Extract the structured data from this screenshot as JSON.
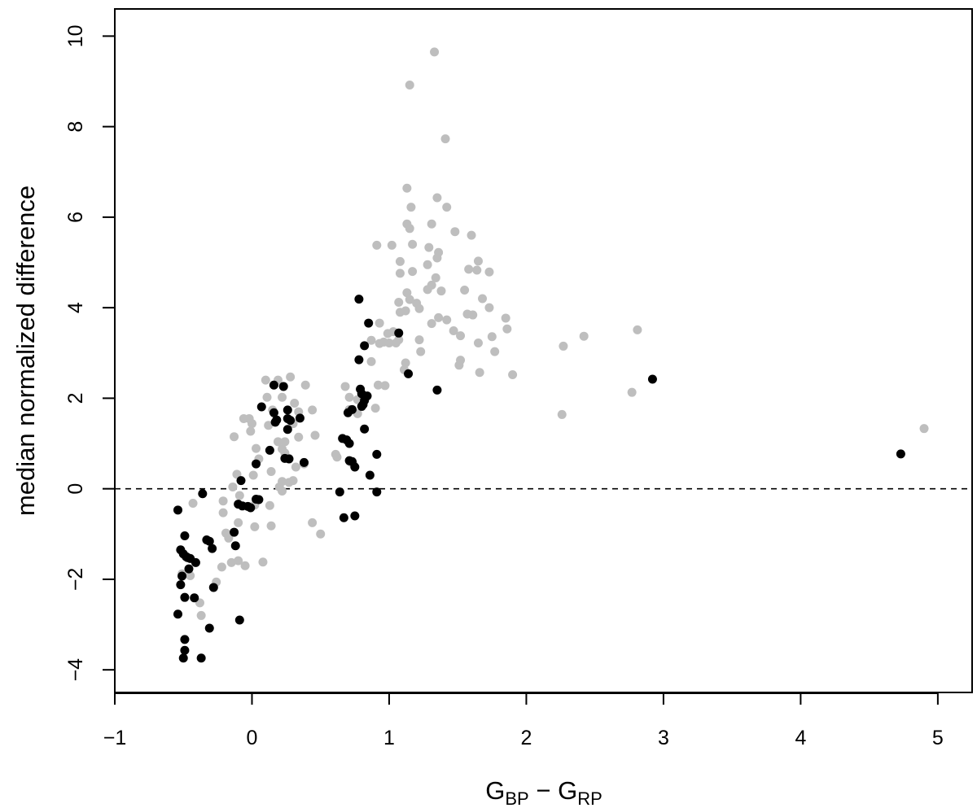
{
  "chart_data": {
    "type": "scatter",
    "title": "",
    "xlabel": {
      "main1": "G",
      "sub1": "BP",
      "mid": " − G",
      "sub2": "RP"
    },
    "ylabel": "median normalized difference",
    "xlim": [
      -1.0,
      5.25
    ],
    "ylim": [
      -4.5,
      10.6
    ],
    "x_ticks": [
      -1,
      0,
      1,
      2,
      3,
      4,
      5
    ],
    "x_tick_labels": [
      "−1",
      "0",
      "1",
      "2",
      "3",
      "4",
      "5"
    ],
    "y_ticks": [
      -4,
      -2,
      0,
      2,
      4,
      6,
      8,
      10
    ],
    "y_tick_labels": [
      "−4",
      "−2",
      "0",
      "2",
      "4",
      "6",
      "8",
      "10"
    ],
    "grid": false,
    "reference_line": {
      "y": 0,
      "style": "dashed"
    },
    "series": [
      {
        "color": "#bebebe",
        "points": [
          [
            1.33,
            9.65
          ],
          [
            1.15,
            8.92
          ],
          [
            1.41,
            7.73
          ],
          [
            1.13,
            6.64
          ],
          [
            1.35,
            6.43
          ],
          [
            1.16,
            6.22
          ],
          [
            1.42,
            6.22
          ],
          [
            1.13,
            5.85
          ],
          [
            1.31,
            5.85
          ],
          [
            1.15,
            5.75
          ],
          [
            1.48,
            5.68
          ],
          [
            1.6,
            5.6
          ],
          [
            1.17,
            5.4
          ],
          [
            1.36,
            5.22
          ],
          [
            0.91,
            5.38
          ],
          [
            1.02,
            5.38
          ],
          [
            1.29,
            5.33
          ],
          [
            1.35,
            5.1
          ],
          [
            1.08,
            5.02
          ],
          [
            1.28,
            4.95
          ],
          [
            1.65,
            5.03
          ],
          [
            1.58,
            4.85
          ],
          [
            1.64,
            4.83
          ],
          [
            1.73,
            4.79
          ],
          [
            1.17,
            4.8
          ],
          [
            1.08,
            4.76
          ],
          [
            1.34,
            4.66
          ],
          [
            1.31,
            4.5
          ],
          [
            1.28,
            4.4
          ],
          [
            1.38,
            4.37
          ],
          [
            1.55,
            4.39
          ],
          [
            1.13,
            4.33
          ],
          [
            1.68,
            4.2
          ],
          [
            1.15,
            4.18
          ],
          [
            1.2,
            4.1
          ],
          [
            1.07,
            4.12
          ],
          [
            1.22,
            3.98
          ],
          [
            1.08,
            3.9
          ],
          [
            1.12,
            3.93
          ],
          [
            1.73,
            4.0
          ],
          [
            1.57,
            3.86
          ],
          [
            1.61,
            3.84
          ],
          [
            1.36,
            3.78
          ],
          [
            1.85,
            3.77
          ],
          [
            1.42,
            3.73
          ],
          [
            1.31,
            3.65
          ],
          [
            0.93,
            3.66
          ],
          [
            1.47,
            3.49
          ],
          [
            1.86,
            3.53
          ],
          [
            1.52,
            3.38
          ],
          [
            1.75,
            3.36
          ],
          [
            1.03,
            3.47
          ],
          [
            0.99,
            3.43
          ],
          [
            1.07,
            3.29
          ],
          [
            1.22,
            3.29
          ],
          [
            0.87,
            3.28
          ],
          [
            0.93,
            3.21
          ],
          [
            0.96,
            3.24
          ],
          [
            1.0,
            3.22
          ],
          [
            1.05,
            3.22
          ],
          [
            1.65,
            3.22
          ],
          [
            1.23,
            3.03
          ],
          [
            1.77,
            3.03
          ],
          [
            0.87,
            2.81
          ],
          [
            1.52,
            2.84
          ],
          [
            1.51,
            2.73
          ],
          [
            1.12,
            2.78
          ],
          [
            1.11,
            2.63
          ],
          [
            1.66,
            2.57
          ],
          [
            1.9,
            2.52
          ],
          [
            0.92,
            2.29
          ],
          [
            0.97,
            2.28
          ],
          [
            0.68,
            2.26
          ],
          [
            0.71,
            2.02
          ],
          [
            0.77,
            1.97
          ],
          [
            0.71,
            1.75
          ],
          [
            0.9,
            1.78
          ],
          [
            0.77,
            1.66
          ],
          [
            0.61,
            0.76
          ],
          [
            0.62,
            0.7
          ],
          [
            0.72,
            0.59
          ],
          [
            0.74,
            0.54
          ],
          [
            2.27,
            3.15
          ],
          [
            2.42,
            3.37
          ],
          [
            2.81,
            3.51
          ],
          [
            2.77,
            2.13
          ],
          [
            2.26,
            1.64
          ],
          [
            4.9,
            1.33
          ],
          [
            0.1,
            2.4
          ],
          [
            0.19,
            2.4
          ],
          [
            0.28,
            2.47
          ],
          [
            0.39,
            2.29
          ],
          [
            0.11,
            2.02
          ],
          [
            0.22,
            2.02
          ],
          [
            0.31,
            1.89
          ],
          [
            0.15,
            1.74
          ],
          [
            0.34,
            1.7
          ],
          [
            0.44,
            1.74
          ],
          [
            -0.06,
            1.55
          ],
          [
            -0.02,
            1.55
          ],
          [
            0.12,
            1.4
          ],
          [
            0.0,
            1.44
          ],
          [
            0.3,
            1.44
          ],
          [
            -0.01,
            1.27
          ],
          [
            0.34,
            1.14
          ],
          [
            0.46,
            1.18
          ],
          [
            0.19,
            1.04
          ],
          [
            0.24,
            1.04
          ],
          [
            -0.13,
            1.15
          ],
          [
            0.03,
            0.89
          ],
          [
            0.22,
            0.88
          ],
          [
            0.24,
            0.79
          ],
          [
            0.05,
            0.66
          ],
          [
            0.27,
            0.67
          ],
          [
            0.32,
            0.48
          ],
          [
            0.38,
            0.55
          ],
          [
            0.14,
            0.38
          ],
          [
            0.01,
            0.3
          ],
          [
            -0.11,
            0.32
          ],
          [
            0.22,
            0.16
          ],
          [
            0.27,
            0.14
          ],
          [
            0.3,
            0.18
          ],
          [
            0.2,
            0.04
          ],
          [
            -0.14,
            0.04
          ],
          [
            -0.09,
            -0.15
          ],
          [
            0.22,
            -0.05
          ],
          [
            -0.21,
            -0.27
          ],
          [
            0.02,
            -0.36
          ],
          [
            0.13,
            -0.37
          ],
          [
            -0.21,
            -0.53
          ],
          [
            -0.1,
            -0.75
          ],
          [
            0.14,
            -0.82
          ],
          [
            0.02,
            -0.84
          ],
          [
            0.44,
            -0.75
          ],
          [
            0.5,
            -1.0
          ],
          [
            -0.19,
            -0.98
          ],
          [
            -0.17,
            -1.09
          ],
          [
            -0.15,
            -1.63
          ],
          [
            -0.1,
            -1.59
          ],
          [
            -0.05,
            -1.7
          ],
          [
            0.08,
            -1.62
          ],
          [
            -0.22,
            -1.73
          ],
          [
            -0.45,
            -1.92
          ],
          [
            -0.26,
            -2.06
          ],
          [
            -0.51,
            -1.88
          ],
          [
            -0.38,
            -2.52
          ],
          [
            -0.37,
            -2.8
          ],
          [
            -0.43,
            -0.32
          ]
        ]
      },
      {
        "color": "#000000",
        "points": [
          [
            0.78,
            4.19
          ],
          [
            0.85,
            3.66
          ],
          [
            1.07,
            3.44
          ],
          [
            0.82,
            3.16
          ],
          [
            0.78,
            2.85
          ],
          [
            1.14,
            2.54
          ],
          [
            1.35,
            2.18
          ],
          [
            2.92,
            2.42
          ],
          [
            4.73,
            0.77
          ],
          [
            0.79,
            2.2
          ],
          [
            0.84,
            2.05
          ],
          [
            0.8,
            2.1
          ],
          [
            0.82,
            1.95
          ],
          [
            0.81,
            1.86
          ],
          [
            0.8,
            1.82
          ],
          [
            0.73,
            1.75
          ],
          [
            0.7,
            1.68
          ],
          [
            0.82,
            1.32
          ],
          [
            0.66,
            1.11
          ],
          [
            0.69,
            1.08
          ],
          [
            0.71,
            1.0
          ],
          [
            0.91,
            0.76
          ],
          [
            0.71,
            0.62
          ],
          [
            0.73,
            0.6
          ],
          [
            0.75,
            0.48
          ],
          [
            0.86,
            0.3
          ],
          [
            0.64,
            -0.07
          ],
          [
            0.91,
            -0.07
          ],
          [
            0.67,
            -0.64
          ],
          [
            0.75,
            -0.6
          ],
          [
            0.16,
            2.29
          ],
          [
            0.23,
            2.26
          ],
          [
            0.07,
            1.81
          ],
          [
            0.26,
            1.74
          ],
          [
            0.16,
            1.68
          ],
          [
            0.18,
            1.52
          ],
          [
            0.17,
            1.47
          ],
          [
            0.26,
            1.55
          ],
          [
            0.28,
            1.51
          ],
          [
            0.35,
            1.56
          ],
          [
            0.26,
            1.31
          ],
          [
            0.13,
            0.85
          ],
          [
            0.24,
            0.67
          ],
          [
            0.27,
            0.66
          ],
          [
            0.38,
            0.58
          ],
          [
            0.03,
            0.55
          ],
          [
            -0.08,
            0.18
          ],
          [
            0.03,
            -0.23
          ],
          [
            0.05,
            -0.24
          ],
          [
            -0.1,
            -0.34
          ],
          [
            -0.07,
            -0.38
          ],
          [
            -0.03,
            -0.39
          ],
          [
            -0.01,
            -0.42
          ],
          [
            -0.13,
            -0.96
          ],
          [
            -0.12,
            -1.26
          ],
          [
            -0.09,
            -2.9
          ],
          [
            -0.36,
            -0.11
          ],
          [
            -0.54,
            -0.47
          ],
          [
            -0.49,
            -1.04
          ],
          [
            -0.33,
            -1.13
          ],
          [
            -0.31,
            -1.16
          ],
          [
            -0.52,
            -1.35
          ],
          [
            -0.29,
            -1.32
          ],
          [
            -0.5,
            -1.44
          ],
          [
            -0.48,
            -1.5
          ],
          [
            -0.47,
            -1.52
          ],
          [
            -0.45,
            -1.54
          ],
          [
            -0.41,
            -1.63
          ],
          [
            -0.46,
            -1.77
          ],
          [
            -0.51,
            -1.93
          ],
          [
            -0.52,
            -2.12
          ],
          [
            -0.28,
            -2.18
          ],
          [
            -0.49,
            -2.4
          ],
          [
            -0.42,
            -2.41
          ],
          [
            -0.54,
            -2.77
          ],
          [
            -0.31,
            -3.08
          ],
          [
            -0.49,
            -3.33
          ],
          [
            -0.49,
            -3.57
          ],
          [
            -0.5,
            -3.74
          ],
          [
            -0.37,
            -3.74
          ]
        ]
      }
    ]
  }
}
